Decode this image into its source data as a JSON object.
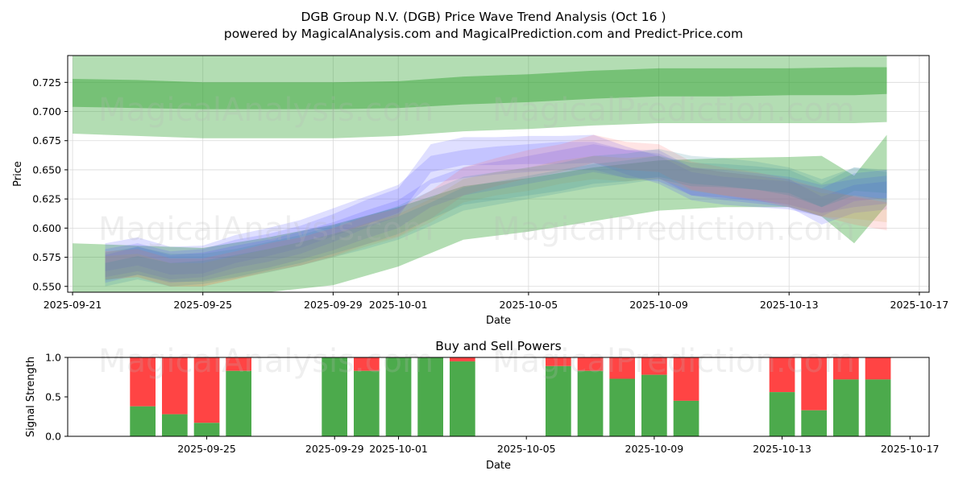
{
  "title_line1": "DGB Group N.V. (DGB) Price Wave Trend Analysis (Oct 16 )",
  "title_line2": "powered by MagicalAnalysis.com and MagicalPrediction.com and Predict-Price.com",
  "watermarks": [
    "MagicalAnalysis.com",
    "MagicalPrediction.com"
  ],
  "colors": {
    "green": "#2ca02c",
    "blue": "#4b4bff",
    "red": "#ff6b6b",
    "buy": "#4caa4c",
    "sell": "#ff4444",
    "grid": "#d9d9d9"
  },
  "chart_data": [
    {
      "type": "area",
      "name": "price-wave-trend",
      "xlabel": "Date",
      "ylabel": "Price",
      "xlim": [
        "2025-09-21",
        "2025-10-17"
      ],
      "ylim": [
        0.545,
        0.748
      ],
      "x_ticks": [
        "2025-09-21",
        "2025-09-25",
        "2025-09-29",
        "2025-10-01",
        "2025-10-05",
        "2025-10-09",
        "2025-10-13",
        "2025-10-17"
      ],
      "y_ticks": [
        "0.550",
        "0.575",
        "0.600",
        "0.625",
        "0.650",
        "0.675",
        "0.700",
        "0.725"
      ],
      "grid": true,
      "green_outer_band": {
        "x": [
          "2025-09-21",
          "2025-09-23",
          "2025-09-25",
          "2025-09-27",
          "2025-09-29",
          "2025-10-01",
          "2025-10-03",
          "2025-10-05",
          "2025-10-07",
          "2025-10-09",
          "2025-10-11",
          "2025-10-13",
          "2025-10-15",
          "2025-10-16"
        ],
        "upper": [
          0.748,
          0.748,
          0.748,
          0.748,
          0.748,
          0.748,
          0.748,
          0.748,
          0.748,
          0.748,
          0.748,
          0.748,
          0.748,
          0.748
        ],
        "lower": [
          0.681,
          0.679,
          0.677,
          0.677,
          0.677,
          0.679,
          0.683,
          0.685,
          0.688,
          0.69,
          0.69,
          0.69,
          0.69,
          0.691
        ]
      },
      "green_inner_band": {
        "x": [
          "2025-09-21",
          "2025-09-23",
          "2025-09-25",
          "2025-09-27",
          "2025-09-29",
          "2025-10-01",
          "2025-10-03",
          "2025-10-05",
          "2025-10-07",
          "2025-10-09",
          "2025-10-11",
          "2025-10-13",
          "2025-10-15",
          "2025-10-16"
        ],
        "upper": [
          0.728,
          0.727,
          0.725,
          0.725,
          0.725,
          0.726,
          0.73,
          0.732,
          0.735,
          0.737,
          0.737,
          0.737,
          0.738,
          0.738
        ],
        "lower": [
          0.704,
          0.703,
          0.702,
          0.702,
          0.702,
          0.703,
          0.706,
          0.708,
          0.711,
          0.713,
          0.713,
          0.714,
          0.714,
          0.715
        ]
      },
      "green_lower_band": {
        "x": [
          "2025-09-21",
          "2025-09-23",
          "2025-09-25",
          "2025-09-27",
          "2025-09-29",
          "2025-10-01",
          "2025-10-03",
          "2025-10-05",
          "2025-10-07",
          "2025-10-09",
          "2025-10-11",
          "2025-10-13",
          "2025-10-14",
          "2025-10-15",
          "2025-10-16"
        ],
        "upper": [
          0.587,
          0.585,
          0.583,
          0.592,
          0.603,
          0.618,
          0.636,
          0.643,
          0.652,
          0.658,
          0.66,
          0.661,
          0.662,
          0.645,
          0.68
        ],
        "lower": [
          0.545,
          0.545,
          0.545,
          0.545,
          0.551,
          0.567,
          0.59,
          0.597,
          0.606,
          0.615,
          0.618,
          0.618,
          0.61,
          0.587,
          0.62
        ]
      },
      "wave_series": [
        {
          "name": "blue-wave-1",
          "color": "#4b4bff",
          "width": 0.012,
          "x": [
            "2025-09-22",
            "2025-09-23",
            "2025-09-24",
            "2025-09-25",
            "2025-09-26",
            "2025-09-27",
            "2025-09-28",
            "2025-09-29",
            "2025-09-30",
            "2025-10-01",
            "2025-10-02",
            "2025-10-03",
            "2025-10-04",
            "2025-10-05",
            "2025-10-06",
            "2025-10-07",
            "2025-10-08",
            "2025-10-09",
            "2025-10-10",
            "2025-10-11",
            "2025-10-12",
            "2025-10-13",
            "2025-10-14",
            "2025-10-15",
            "2025-10-16"
          ],
          "y": [
            0.57,
            0.575,
            0.568,
            0.57,
            0.578,
            0.583,
            0.59,
            0.6,
            0.612,
            0.622,
            0.66,
            0.666,
            0.666,
            0.667,
            0.667,
            0.668,
            0.658,
            0.65,
            0.636,
            0.632,
            0.63,
            0.628,
            0.622,
            0.635,
            0.638
          ]
        },
        {
          "name": "blue-wave-2",
          "color": "#4b4bff",
          "width": 0.012,
          "x": [
            "2025-09-22",
            "2025-09-23",
            "2025-09-24",
            "2025-09-25",
            "2025-09-26",
            "2025-09-27",
            "2025-09-28",
            "2025-09-29",
            "2025-09-30",
            "2025-10-01",
            "2025-10-02",
            "2025-10-03",
            "2025-10-04",
            "2025-10-05",
            "2025-10-06",
            "2025-10-07",
            "2025-10-08",
            "2025-10-09",
            "2025-10-10",
            "2025-10-11",
            "2025-10-12",
            "2025-10-13",
            "2025-10-14",
            "2025-10-15",
            "2025-10-16"
          ],
          "y": [
            0.575,
            0.58,
            0.572,
            0.573,
            0.582,
            0.588,
            0.595,
            0.605,
            0.615,
            0.625,
            0.65,
            0.655,
            0.658,
            0.66,
            0.662,
            0.662,
            0.655,
            0.652,
            0.64,
            0.638,
            0.635,
            0.632,
            0.625,
            0.63,
            0.633
          ]
        },
        {
          "name": "blue-wave-3",
          "color": "#4b4bff",
          "width": 0.012,
          "x": [
            "2025-09-22",
            "2025-09-23",
            "2025-09-24",
            "2025-09-25",
            "2025-09-26",
            "2025-09-27",
            "2025-09-28",
            "2025-09-29",
            "2025-09-30",
            "2025-10-01",
            "2025-10-02",
            "2025-10-03",
            "2025-10-04",
            "2025-10-05",
            "2025-10-06",
            "2025-10-07",
            "2025-10-08",
            "2025-10-09",
            "2025-10-10",
            "2025-10-11",
            "2025-10-12",
            "2025-10-13",
            "2025-10-14",
            "2025-10-15",
            "2025-10-16"
          ],
          "y": [
            0.565,
            0.572,
            0.565,
            0.567,
            0.573,
            0.578,
            0.585,
            0.593,
            0.603,
            0.612,
            0.63,
            0.64,
            0.645,
            0.65,
            0.655,
            0.66,
            0.655,
            0.655,
            0.64,
            0.636,
            0.633,
            0.63,
            0.615,
            0.625,
            0.628
          ]
        },
        {
          "name": "red-wave-1",
          "color": "#ff6b6b",
          "width": 0.012,
          "x": [
            "2025-09-22",
            "2025-09-23",
            "2025-09-24",
            "2025-09-25",
            "2025-09-26",
            "2025-09-27",
            "2025-09-28",
            "2025-09-29",
            "2025-09-30",
            "2025-10-01",
            "2025-10-02",
            "2025-10-03",
            "2025-10-04",
            "2025-10-05",
            "2025-10-06",
            "2025-10-07",
            "2025-10-08",
            "2025-10-09",
            "2025-10-10",
            "2025-10-11",
            "2025-10-12",
            "2025-10-13",
            "2025-10-14",
            "2025-10-15",
            "2025-10-16"
          ],
          "y": [
            0.568,
            0.57,
            0.562,
            0.562,
            0.568,
            0.575,
            0.58,
            0.588,
            0.598,
            0.605,
            0.62,
            0.64,
            0.648,
            0.655,
            0.66,
            0.668,
            0.662,
            0.66,
            0.645,
            0.64,
            0.636,
            0.63,
            0.622,
            0.615,
            0.61
          ]
        },
        {
          "name": "orange-wave-1",
          "color": "#c8a050",
          "width": 0.01,
          "x": [
            "2025-09-22",
            "2025-09-23",
            "2025-09-24",
            "2025-09-25",
            "2025-09-26",
            "2025-09-27",
            "2025-09-28",
            "2025-09-29",
            "2025-09-30",
            "2025-10-01",
            "2025-10-02",
            "2025-10-03",
            "2025-10-04",
            "2025-10-05",
            "2025-10-06",
            "2025-10-07",
            "2025-10-08",
            "2025-10-09",
            "2025-10-10",
            "2025-10-11",
            "2025-10-12",
            "2025-10-13",
            "2025-10-14",
            "2025-10-15",
            "2025-10-16"
          ],
          "y": [
            0.566,
            0.568,
            0.56,
            0.56,
            0.566,
            0.572,
            0.578,
            0.585,
            0.594,
            0.602,
            0.615,
            0.632,
            0.638,
            0.642,
            0.648,
            0.652,
            0.65,
            0.652,
            0.642,
            0.638,
            0.635,
            0.63,
            0.62,
            0.618,
            0.615
          ]
        },
        {
          "name": "teal-wave-1",
          "color": "#3a8a9a",
          "width": 0.012,
          "x": [
            "2025-09-22",
            "2025-09-23",
            "2025-09-24",
            "2025-09-25",
            "2025-09-26",
            "2025-09-27",
            "2025-09-28",
            "2025-09-29",
            "2025-09-30",
            "2025-10-01",
            "2025-10-02",
            "2025-10-03",
            "2025-10-04",
            "2025-10-05",
            "2025-10-06",
            "2025-10-07",
            "2025-10-08",
            "2025-10-09",
            "2025-10-10",
            "2025-10-11",
            "2025-10-12",
            "2025-10-13",
            "2025-10-14",
            "2025-10-15",
            "2025-10-16"
          ],
          "y": [
            0.567,
            0.572,
            0.566,
            0.566,
            0.57,
            0.576,
            0.582,
            0.59,
            0.598,
            0.607,
            0.62,
            0.632,
            0.636,
            0.64,
            0.644,
            0.65,
            0.652,
            0.656,
            0.65,
            0.648,
            0.645,
            0.64,
            0.63,
            0.64,
            0.636
          ]
        },
        {
          "name": "teal-wave-2",
          "color": "#3a8a9a",
          "width": 0.01,
          "x": [
            "2025-09-22",
            "2025-09-23",
            "2025-09-24",
            "2025-09-25",
            "2025-09-26",
            "2025-09-27",
            "2025-09-28",
            "2025-09-29",
            "2025-09-30",
            "2025-10-01",
            "2025-10-02",
            "2025-10-03",
            "2025-10-04",
            "2025-10-05",
            "2025-10-06",
            "2025-10-07",
            "2025-10-08",
            "2025-10-09",
            "2025-10-10",
            "2025-10-11",
            "2025-10-12",
            "2025-10-13",
            "2025-10-14",
            "2025-10-15",
            "2025-10-16"
          ],
          "y": [
            0.56,
            0.566,
            0.56,
            0.562,
            0.567,
            0.572,
            0.578,
            0.585,
            0.592,
            0.6,
            0.612,
            0.625,
            0.63,
            0.635,
            0.64,
            0.645,
            0.648,
            0.652,
            0.646,
            0.645,
            0.643,
            0.64,
            0.628,
            0.642,
            0.64
          ]
        }
      ]
    },
    {
      "type": "bar",
      "name": "buy-sell-powers",
      "title": "Buy and Sell Powers",
      "xlabel": "Date",
      "ylabel": "Signal Strength",
      "ylim": [
        0,
        1.0
      ],
      "y_ticks": [
        "0.0",
        "0.5",
        "1.0"
      ],
      "x_ticks": [
        "2025-09-25",
        "2025-09-29",
        "2025-10-01",
        "2025-10-05",
        "2025-10-09",
        "2025-10-13",
        "2025-10-17"
      ],
      "x": [
        "2025-09-23",
        "2025-09-24",
        "2025-09-25",
        "2025-09-26",
        "2025-09-29",
        "2025-09-30",
        "2025-10-01",
        "2025-10-02",
        "2025-10-03",
        "2025-10-06",
        "2025-10-07",
        "2025-10-08",
        "2025-10-09",
        "2025-10-10",
        "2025-10-13",
        "2025-10-14",
        "2025-10-15",
        "2025-10-16"
      ],
      "buy": [
        0.38,
        0.28,
        0.17,
        0.83,
        1.0,
        0.83,
        1.0,
        1.0,
        0.95,
        0.89,
        0.83,
        0.73,
        0.78,
        0.45,
        0.56,
        0.33,
        0.72,
        0.72
      ],
      "total": 1.0
    }
  ]
}
